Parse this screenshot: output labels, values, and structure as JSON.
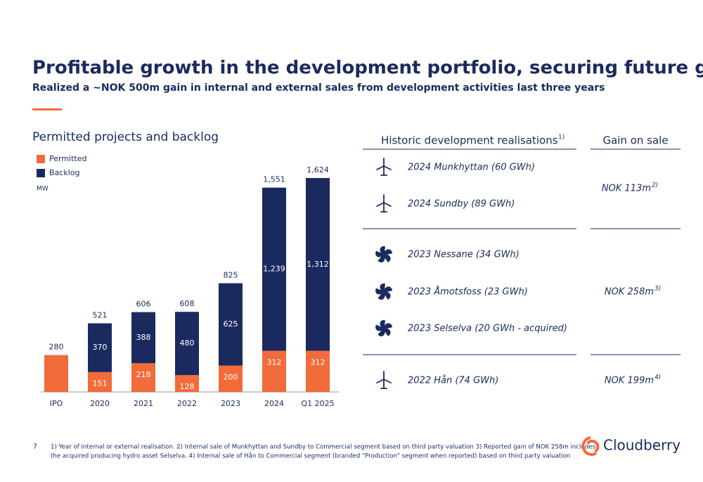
{
  "header": {
    "title": "Profitable growth in the development portfolio, securing future growth",
    "subtitle": "Realized a ~NOK 500m gain in internal and external sales from development activities last three years"
  },
  "chart_data": {
    "type": "stacked_bar",
    "title": "Permitted projects and backlog",
    "unit": "MW",
    "categories": [
      "IPO",
      "2020",
      "2021",
      "2022",
      "2023",
      "2024",
      "Q1 2025"
    ],
    "series": [
      {
        "name": "Permitted",
        "color": "#f26b3a",
        "values": [
          280,
          151,
          218,
          128,
          200,
          312,
          312
        ],
        "value_labels": [
          null,
          "151",
          "218",
          "128",
          "200",
          "312",
          "312"
        ]
      },
      {
        "name": "Backlog",
        "color": "#1b2a5e",
        "values": [
          null,
          370,
          388,
          480,
          625,
          1239,
          1312
        ],
        "value_labels": [
          null,
          "370",
          "388",
          "480",
          "625",
          "1,239",
          "1,312"
        ]
      }
    ],
    "totals": [
      280,
      521,
      606,
      608,
      825,
      1551,
      1624
    ],
    "total_labels": [
      "280",
      "521",
      "606",
      "608",
      "825",
      "1,551",
      "1,624"
    ]
  },
  "table": {
    "headers": [
      "Historic development realisations",
      "Gain on sale"
    ],
    "header_note": "1)",
    "groups": [
      {
        "items": [
          "2024 Munkhyttan (60 GWh)",
          "2024 Sundby (89 GWh)"
        ],
        "gain": "NOK 113m",
        "gain_note": "2)"
      },
      {
        "items": [
          "2023 Nessane (34 GWh)",
          "2023 Åmotsfoss (23 GWh)",
          "2023 Selselva (20 GWh - acquired)"
        ],
        "gain": "NOK 258m",
        "gain_note": "3)"
      },
      {
        "items": [
          "2022 Hån (74 GWh)"
        ],
        "gain": "NOK 199m",
        "gain_note": "4)"
      }
    ]
  },
  "footer": {
    "page": "7",
    "lines": [
      "1) Year of internal or external realisation. 2) Internal sale of Munkhyttan and Sundby to Commercial segment based on third party valuation 3) Reported gain of NOK 258m includes",
      "the acquired producing hydro asset Selselva. 4) Internal sale of Hån to Commercial segment (branded “Production” segment when reported) based on third party valuation"
    ],
    "logo": "Cloudberry"
  }
}
